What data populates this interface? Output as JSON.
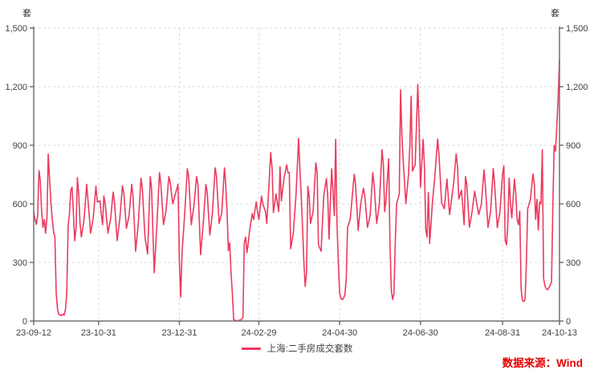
{
  "chart_data": {
    "type": "line",
    "title": "",
    "legend_position": "bottom-center",
    "grid": "dashed",
    "y_axis": {
      "unit": "套",
      "min": 0,
      "max": 1500,
      "tick_values": [
        0,
        300,
        600,
        900,
        1200,
        1500
      ],
      "tick_labels": [
        "0",
        "300",
        "600",
        "900",
        "1,200",
        "1,500"
      ],
      "mirrored_right_axis": true
    },
    "x_axis": {
      "start_date": "23-09-12",
      "end_date": "24-10-13",
      "total_days": 397,
      "ticks": [
        {
          "day": 0,
          "label": "23-09-12"
        },
        {
          "day": 49,
          "label": "23-10-31"
        },
        {
          "day": 110,
          "label": "23-12-31"
        },
        {
          "day": 170,
          "label": "24-02-29"
        },
        {
          "day": 231,
          "label": "24-04-30"
        },
        {
          "day": 292,
          "label": "24-06-30"
        },
        {
          "day": 354,
          "label": "24-08-31"
        },
        {
          "day": 397,
          "label": "24-10-13"
        }
      ]
    },
    "series": [
      {
        "name": "上海:二手房成交套数",
        "color": "#ec3a5e",
        "points_format": "[days_since_2023-09-12, 套数(estimated)]",
        "points": [
          [
            0,
            560
          ],
          [
            1,
            520
          ],
          [
            2,
            495
          ],
          [
            3,
            540
          ],
          [
            4,
            770
          ],
          [
            5,
            720
          ],
          [
            6,
            560
          ],
          [
            7,
            480
          ],
          [
            8,
            520
          ],
          [
            9,
            450
          ],
          [
            10,
            530
          ],
          [
            11,
            855
          ],
          [
            12,
            720
          ],
          [
            13,
            610
          ],
          [
            14,
            520
          ],
          [
            15,
            460
          ],
          [
            16,
            430
          ],
          [
            17,
            145
          ],
          [
            18,
            60
          ],
          [
            19,
            35
          ],
          [
            20,
            30
          ],
          [
            21,
            28
          ],
          [
            22,
            35
          ],
          [
            23,
            30
          ],
          [
            24,
            60
          ],
          [
            25,
            145
          ],
          [
            26,
            490
          ],
          [
            27,
            548
          ],
          [
            28,
            670
          ],
          [
            29,
            686
          ],
          [
            30,
            550
          ],
          [
            31,
            411
          ],
          [
            32,
            480
          ],
          [
            33,
            735
          ],
          [
            34,
            650
          ],
          [
            35,
            500
          ],
          [
            36,
            430
          ],
          [
            38,
            520
          ],
          [
            40,
            700
          ],
          [
            41,
            620
          ],
          [
            43,
            450
          ],
          [
            45,
            530
          ],
          [
            47,
            690
          ],
          [
            48,
            610
          ],
          [
            50,
            616
          ],
          [
            51,
            550
          ],
          [
            52,
            493
          ],
          [
            53,
            640
          ],
          [
            54,
            600
          ],
          [
            56,
            450
          ],
          [
            58,
            520
          ],
          [
            60,
            660
          ],
          [
            61,
            610
          ],
          [
            63,
            411
          ],
          [
            65,
            520
          ],
          [
            67,
            692
          ],
          [
            68,
            658
          ],
          [
            70,
            475
          ],
          [
            72,
            540
          ],
          [
            74,
            700
          ],
          [
            75,
            640
          ],
          [
            77,
            357
          ],
          [
            79,
            500
          ],
          [
            81,
            732
          ],
          [
            82,
            680
          ],
          [
            84,
            430
          ],
          [
            86,
            343
          ],
          [
            88,
            740
          ],
          [
            89,
            680
          ],
          [
            91,
            247
          ],
          [
            93,
            490
          ],
          [
            95,
            760
          ],
          [
            96,
            700
          ],
          [
            98,
            493
          ],
          [
            100,
            570
          ],
          [
            102,
            740
          ],
          [
            103,
            715
          ],
          [
            105,
            600
          ],
          [
            107,
            650
          ],
          [
            109,
            700
          ],
          [
            110,
            300
          ],
          [
            111,
            123
          ],
          [
            112,
            350
          ],
          [
            114,
            550
          ],
          [
            116,
            780
          ],
          [
            117,
            740
          ],
          [
            119,
            493
          ],
          [
            121,
            590
          ],
          [
            123,
            740
          ],
          [
            124,
            700
          ],
          [
            126,
            340
          ],
          [
            128,
            500
          ],
          [
            130,
            700
          ],
          [
            131,
            660
          ],
          [
            133,
            440
          ],
          [
            135,
            555
          ],
          [
            137,
            785
          ],
          [
            138,
            740
          ],
          [
            140,
            500
          ],
          [
            142,
            555
          ],
          [
            144,
            785
          ],
          [
            145,
            700
          ],
          [
            146,
            555
          ],
          [
            147,
            360
          ],
          [
            148,
            400
          ],
          [
            149,
            250
          ],
          [
            150,
            140
          ],
          [
            151,
            8
          ],
          [
            152,
            3
          ],
          [
            153,
            2
          ],
          [
            154,
            2
          ],
          [
            155,
            3
          ],
          [
            156,
            5
          ],
          [
            157,
            10
          ],
          [
            158,
            20
          ],
          [
            159,
            400
          ],
          [
            160,
            430
          ],
          [
            161,
            350
          ],
          [
            162,
            400
          ],
          [
            163,
            460
          ],
          [
            165,
            550
          ],
          [
            166,
            520
          ],
          [
            168,
            610
          ],
          [
            169,
            560
          ],
          [
            170,
            520
          ],
          [
            172,
            640
          ],
          [
            173,
            600
          ],
          [
            175,
            560
          ],
          [
            176,
            500
          ],
          [
            179,
            863
          ],
          [
            180,
            780
          ],
          [
            181,
            555
          ],
          [
            183,
            650
          ],
          [
            185,
            560
          ],
          [
            186,
            790
          ],
          [
            187,
            615
          ],
          [
            189,
            730
          ],
          [
            191,
            800
          ],
          [
            192,
            760
          ],
          [
            193,
            760
          ],
          [
            194,
            370
          ],
          [
            196,
            450
          ],
          [
            198,
            640
          ],
          [
            200,
            935
          ],
          [
            201,
            780
          ],
          [
            202,
            640
          ],
          [
            203,
            480
          ],
          [
            204,
            300
          ],
          [
            205,
            177
          ],
          [
            206,
            250
          ],
          [
            207,
            690
          ],
          [
            208,
            640
          ],
          [
            209,
            500
          ],
          [
            211,
            560
          ],
          [
            213,
            810
          ],
          [
            214,
            760
          ],
          [
            215,
            390
          ],
          [
            217,
            357
          ],
          [
            219,
            640
          ],
          [
            221,
            730
          ],
          [
            222,
            640
          ],
          [
            223,
            420
          ],
          [
            225,
            780
          ],
          [
            227,
            540
          ],
          [
            228,
            930
          ],
          [
            229,
            500
          ],
          [
            230,
            300
          ],
          [
            231,
            144
          ],
          [
            232,
            115
          ],
          [
            233,
            110
          ],
          [
            234,
            118
          ],
          [
            235,
            135
          ],
          [
            236,
            220
          ],
          [
            237,
            480
          ],
          [
            239,
            520
          ],
          [
            242,
            752
          ],
          [
            243,
            700
          ],
          [
            245,
            464
          ],
          [
            247,
            604
          ],
          [
            249,
            680
          ],
          [
            250,
            640
          ],
          [
            252,
            480
          ],
          [
            254,
            540
          ],
          [
            256,
            760
          ],
          [
            257,
            700
          ],
          [
            259,
            500
          ],
          [
            261,
            600
          ],
          [
            263,
            877
          ],
          [
            264,
            800
          ],
          [
            265,
            560
          ],
          [
            266,
            620
          ],
          [
            268,
            830
          ],
          [
            269,
            400
          ],
          [
            270,
            160
          ],
          [
            271,
            110
          ],
          [
            272,
            140
          ],
          [
            273,
            400
          ],
          [
            274,
            601
          ],
          [
            276,
            650
          ],
          [
            277,
            1184
          ],
          [
            278,
            950
          ],
          [
            279,
            822
          ],
          [
            281,
            601
          ],
          [
            283,
            750
          ],
          [
            284,
            900
          ],
          [
            285,
            1151
          ],
          [
            286,
            768
          ],
          [
            288,
            800
          ],
          [
            290,
            1212
          ],
          [
            291,
            1000
          ],
          [
            292,
            686
          ],
          [
            294,
            930
          ],
          [
            295,
            800
          ],
          [
            296,
            470
          ],
          [
            297,
            430
          ],
          [
            298,
            658
          ],
          [
            299,
            397
          ],
          [
            301,
            600
          ],
          [
            303,
            750
          ],
          [
            305,
            932
          ],
          [
            306,
            850
          ],
          [
            308,
            604
          ],
          [
            310,
            575
          ],
          [
            312,
            727
          ],
          [
            314,
            545
          ],
          [
            317,
            700
          ],
          [
            319,
            855
          ],
          [
            320,
            790
          ],
          [
            321,
            625
          ],
          [
            323,
            670
          ],
          [
            325,
            493
          ],
          [
            326,
            740
          ],
          [
            327,
            700
          ],
          [
            329,
            480
          ],
          [
            331,
            560
          ],
          [
            333,
            665
          ],
          [
            334,
            620
          ],
          [
            336,
            545
          ],
          [
            338,
            600
          ],
          [
            340,
            774
          ],
          [
            341,
            700
          ],
          [
            343,
            480
          ],
          [
            345,
            560
          ],
          [
            347,
            781
          ],
          [
            348,
            700
          ],
          [
            350,
            478
          ],
          [
            352,
            560
          ],
          [
            354,
            753
          ],
          [
            355,
            794
          ],
          [
            356,
            411
          ],
          [
            357,
            390
          ],
          [
            358,
            500
          ],
          [
            359,
            732
          ],
          [
            360,
            600
          ],
          [
            361,
            528
          ],
          [
            363,
            727
          ],
          [
            364,
            650
          ],
          [
            365,
            520
          ],
          [
            366,
            493
          ],
          [
            367,
            562
          ],
          [
            368,
            165
          ],
          [
            369,
            105
          ],
          [
            370,
            100
          ],
          [
            371,
            110
          ],
          [
            372,
            300
          ],
          [
            373,
            576
          ],
          [
            375,
            620
          ],
          [
            377,
            753
          ],
          [
            378,
            700
          ],
          [
            379,
            521
          ],
          [
            380,
            623
          ],
          [
            381,
            466
          ],
          [
            382,
            610
          ],
          [
            383,
            600
          ],
          [
            384,
            877
          ],
          [
            385,
            220
          ],
          [
            386,
            180
          ],
          [
            387,
            165
          ],
          [
            388,
            160
          ],
          [
            389,
            170
          ],
          [
            390,
            185
          ],
          [
            391,
            200
          ],
          [
            392,
            600
          ],
          [
            393,
            900
          ],
          [
            394,
            870
          ],
          [
            395,
            1000
          ],
          [
            396,
            1150
          ],
          [
            397,
            1340
          ]
        ]
      }
    ]
  },
  "legend": {
    "label": "上海:二手房成交套数"
  },
  "source": {
    "label": "数据来源：Wind",
    "color": "#e60000"
  },
  "style": {
    "axis_color": "#707070",
    "grid_color": "#d9d9d9",
    "tick_text_color": "#404040",
    "line_color": "#ec3a5e"
  }
}
